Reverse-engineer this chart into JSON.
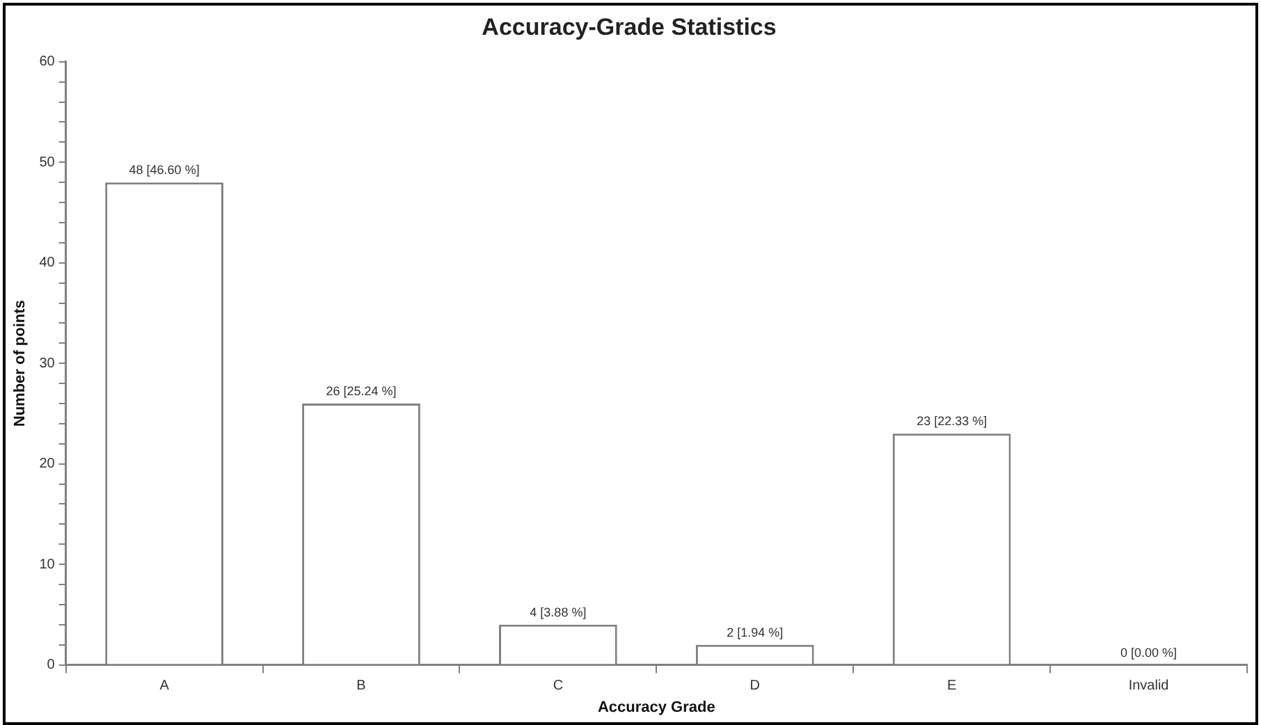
{
  "chart_data": {
    "type": "bar",
    "title": "Accuracy-Grade Statistics",
    "xlabel": "Accuracy Grade",
    "ylabel": "Number of points",
    "categories": [
      "A",
      "B",
      "C",
      "D",
      "E",
      "Invalid"
    ],
    "values": [
      48,
      26,
      4,
      2,
      23,
      0
    ],
    "value_labels": [
      "48 [46.60 %]",
      "26 [25.24 %]",
      "4 [3.88 %]",
      "2 [1.94 %]",
      "23 [22.33 %]",
      "0 [0.00 %]"
    ],
    "color": "#ffffff",
    "ylim": [
      0,
      60
    ],
    "yticks": [
      0,
      {
        "value": 2,
        "label": null
      },
      {
        "value": 4,
        "label": null
      },
      {
        "value": 6,
        "label": null
      },
      {
        "value": 8,
        "label": null
      },
      10,
      {
        "value": 12,
        "label": null
      },
      {
        "value": 14,
        "label": null
      },
      {
        "value": 16,
        "label": null
      },
      {
        "value": 18,
        "label": null
      },
      20,
      {
        "value": 22,
        "label": null
      },
      {
        "value": 24,
        "label": null
      },
      {
        "value": 26,
        "label": null
      },
      {
        "value": 28,
        "label": null
      },
      30,
      {
        "value": 32,
        "label": null
      },
      {
        "value": 34,
        "label": null
      },
      {
        "value": 36,
        "label": null
      },
      {
        "value": 38,
        "label": null
      },
      40,
      {
        "value": 42,
        "label": null
      },
      {
        "value": 44,
        "label": null
      },
      {
        "value": 46,
        "label": null
      },
      {
        "value": 48,
        "label": null
      },
      50,
      {
        "value": 52,
        "label": null
      },
      {
        "value": 54,
        "label": null
      },
      {
        "value": 56,
        "label": null
      },
      {
        "value": 58,
        "label": null
      },
      60
    ],
    "grid": false,
    "legend": false
  }
}
